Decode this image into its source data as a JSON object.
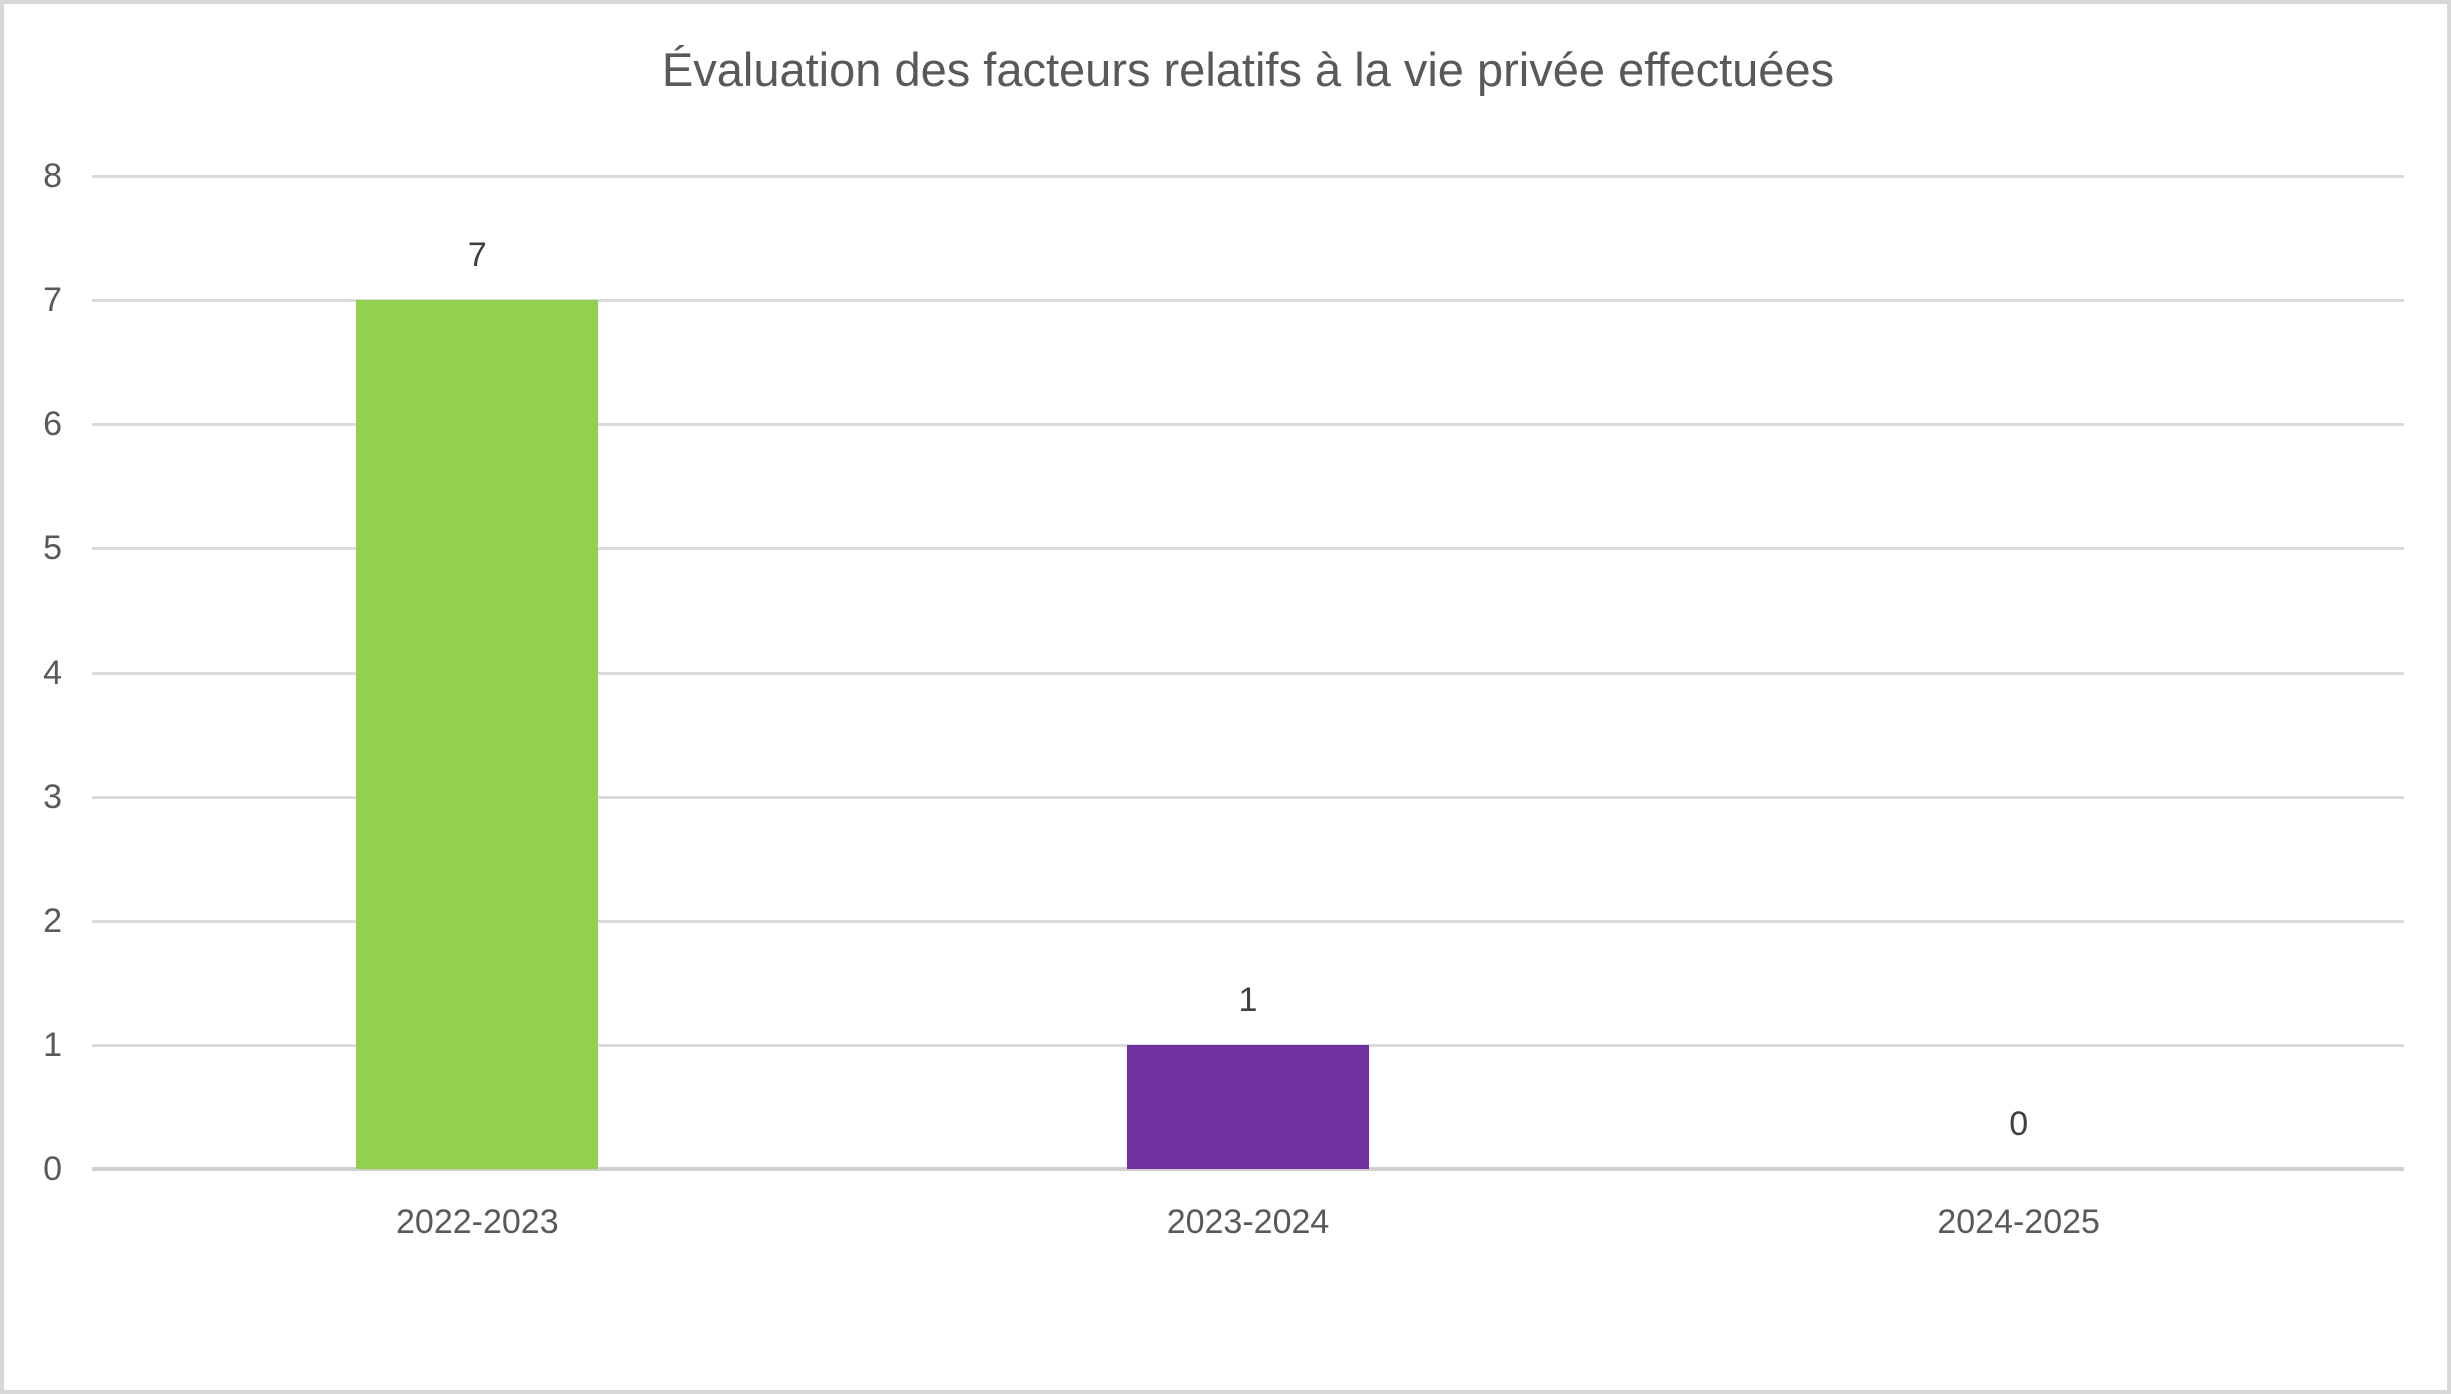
{
  "chart_data": {
    "type": "bar",
    "title": "Évaluation des facteurs relatifs à la vie privée effectuées",
    "categories": [
      "2022-2023",
      "2023-2024",
      "2024-2025"
    ],
    "values": [
      7,
      1,
      0
    ],
    "data_labels": [
      "7",
      "1",
      "0"
    ],
    "bar_colors": [
      "#92D050",
      "#7030A0",
      "#92D050"
    ],
    "xlabel": "",
    "ylabel": "",
    "ylim": [
      0,
      8
    ],
    "yticks": [
      8,
      7,
      6,
      5,
      4,
      3,
      2,
      1,
      0
    ],
    "grid": true,
    "legend_position": "none"
  },
  "colors": {
    "background": "#FFFFFF",
    "frame_border": "#D8D8D8",
    "title_text": "#595959",
    "axis_text": "#595959",
    "data_label_text": "#3F3F3F",
    "gridline": "#DBDBDB",
    "axis_line": "#D0D0D0"
  }
}
